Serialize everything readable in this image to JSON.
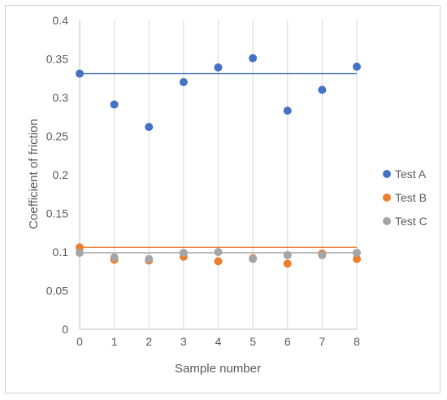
{
  "chart_data": {
    "type": "scatter",
    "title": "",
    "xlabel": "Sample number",
    "ylabel": "Coefficient of friction",
    "xlim": [
      0,
      8
    ],
    "ylim": [
      0,
      0.4
    ],
    "x_ticks": [
      "0",
      "1",
      "2",
      "3",
      "4",
      "5",
      "6",
      "7",
      "8"
    ],
    "y_ticks": [
      "0",
      "0.05",
      "0.1",
      "0.15",
      "0.2",
      "0.25",
      "0.3",
      "0.35",
      "0.4"
    ],
    "grid": {
      "vertical": true,
      "horizontal": false
    },
    "legend_position": "right",
    "series": [
      {
        "name": "Test A",
        "color": "#4472C4",
        "x": [
          0,
          1,
          2,
          3,
          4,
          5,
          6,
          7,
          8
        ],
        "y": [
          0.331,
          0.291,
          0.262,
          0.32,
          0.339,
          0.351,
          0.283,
          0.31,
          0.34
        ],
        "reference_line": 0.331
      },
      {
        "name": "Test B",
        "color": "#ED7D31",
        "x": [
          0,
          1,
          2,
          3,
          4,
          5,
          6,
          7,
          8
        ],
        "y": [
          0.106,
          0.09,
          0.089,
          0.094,
          0.088,
          0.092,
          0.085,
          0.098,
          0.091
        ],
        "reference_line": 0.106
      },
      {
        "name": "Test C",
        "color": "#A5A5A5",
        "x": [
          0,
          1,
          2,
          3,
          4,
          5,
          6,
          7,
          8
        ],
        "y": [
          0.099,
          0.093,
          0.091,
          0.099,
          0.1,
          0.091,
          0.096,
          0.096,
          0.099
        ],
        "reference_line": 0.099
      }
    ]
  }
}
